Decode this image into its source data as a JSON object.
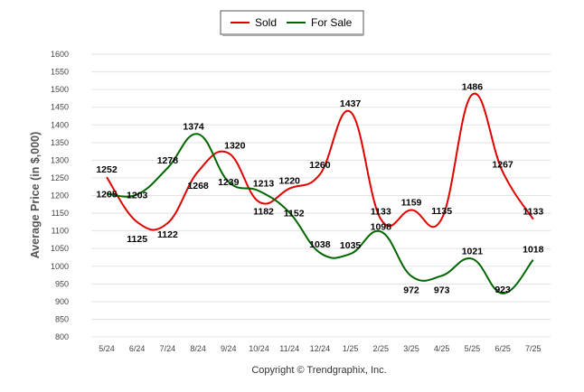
{
  "chart_data": {
    "type": "line",
    "categories": [
      "5/24",
      "6/24",
      "7/24",
      "8/24",
      "9/24",
      "10/24",
      "11/24",
      "12/24",
      "1/25",
      "2/25",
      "3/25",
      "4/25",
      "5/25",
      "6/25",
      "7/25"
    ],
    "series": [
      {
        "name": "Sold",
        "color": "#e00000",
        "values": [
          1252,
          1125,
          1122,
          1268,
          1320,
          1182,
          1220,
          1260,
          1437,
          1133,
          1159,
          1135,
          1486,
          1267,
          1133
        ]
      },
      {
        "name": "For Sale",
        "color": "#006600",
        "values": [
          1205,
          1203,
          1278,
          1374,
          1239,
          1213,
          1152,
          1038,
          1035,
          1098,
          972,
          973,
          1021,
          923,
          1018
        ]
      }
    ],
    "ylabel": "Average Price (in $,000)",
    "xlabel": "",
    "ylim": [
      800,
      1600
    ],
    "yticks": [
      800,
      850,
      900,
      950,
      1000,
      1050,
      1100,
      1150,
      1200,
      1250,
      1300,
      1350,
      1400,
      1450,
      1500,
      1550,
      1600
    ],
    "grid": true,
    "legend_position": "top-center"
  },
  "legend": {
    "sold_label": "Sold",
    "for_sale_label": "For Sale"
  },
  "copyright": "Copyright © Trendgraphix, Inc."
}
